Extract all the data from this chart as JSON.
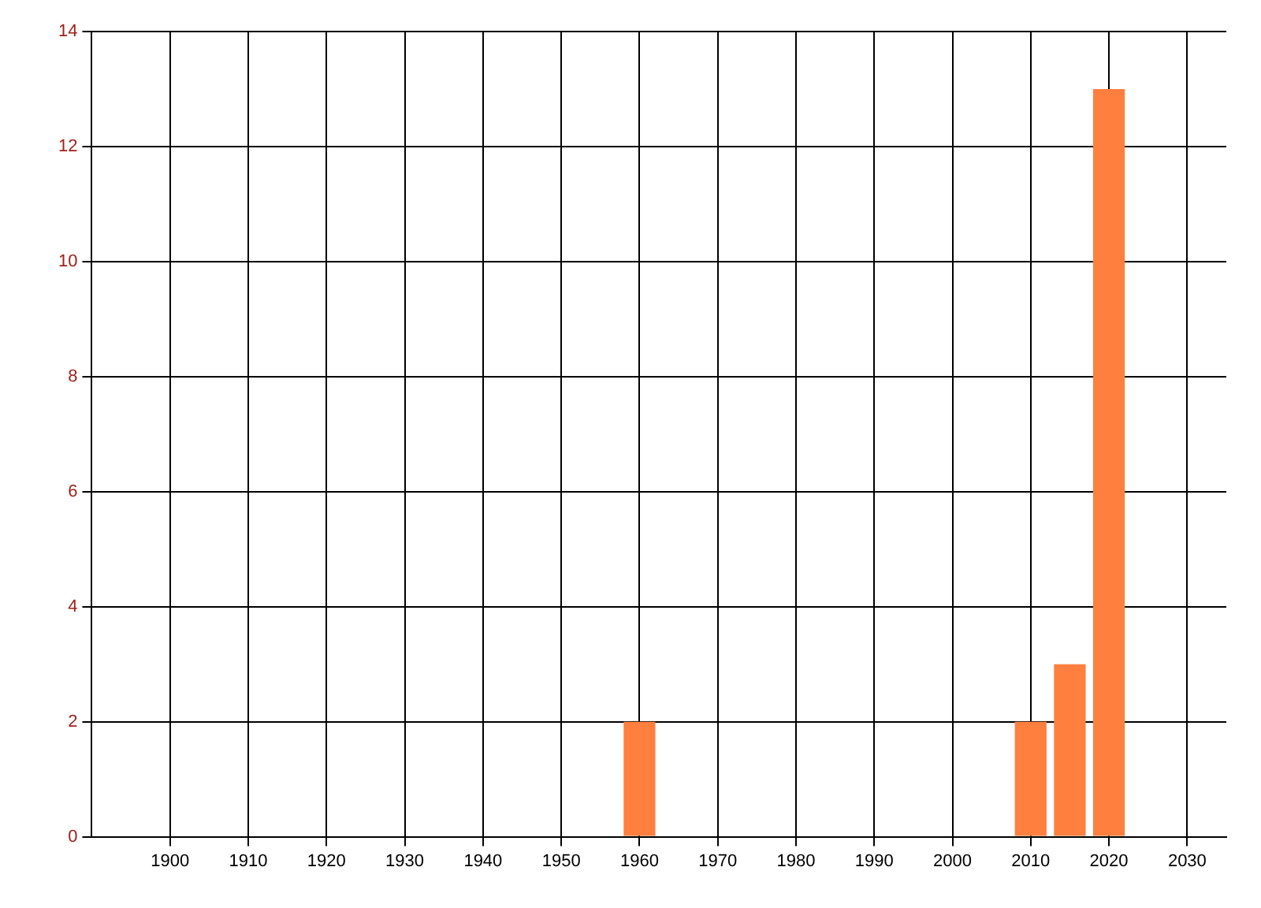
{
  "chart_data": {
    "type": "bar",
    "x": [
      1960,
      2010,
      2015,
      2020
    ],
    "values": [
      2,
      2,
      3,
      13
    ],
    "color": "#ff7f3f",
    "xlim": [
      1890,
      2035
    ],
    "xticks": [
      1900,
      1910,
      1920,
      1930,
      1940,
      1950,
      1960,
      1970,
      1980,
      1990,
      2000,
      2010,
      2020,
      2030
    ],
    "ylim": [
      0,
      14
    ],
    "yticks": [
      0,
      2,
      4,
      6,
      8,
      10,
      12,
      14
    ],
    "grid": true
  }
}
